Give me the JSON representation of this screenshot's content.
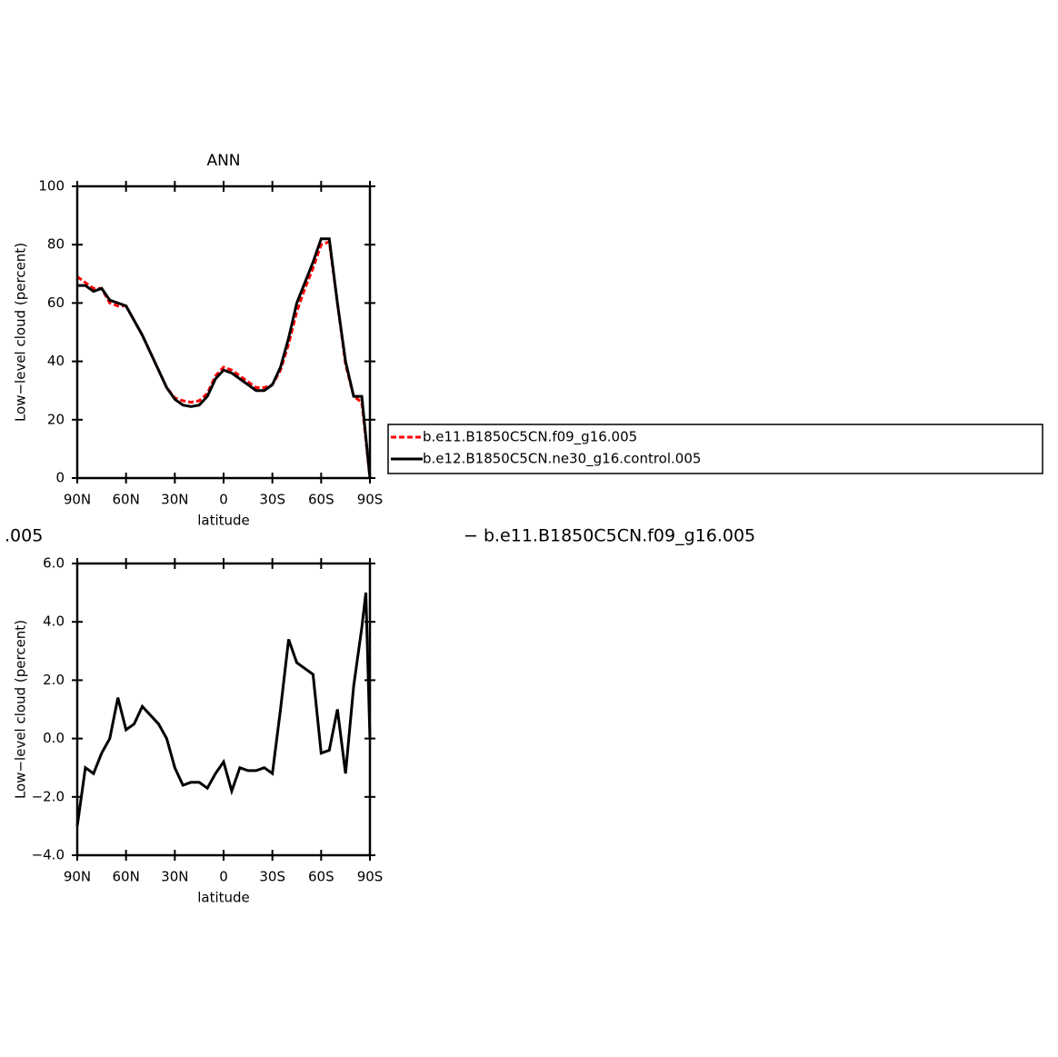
{
  "chart_data": [
    {
      "type": "line",
      "title": "ANN",
      "xlabel": "latitude",
      "ylabel": "Low−level cloud (percent)",
      "x": [
        90,
        85,
        80,
        75,
        70,
        65,
        60,
        55,
        50,
        45,
        40,
        35,
        30,
        25,
        20,
        15,
        10,
        5,
        0,
        -5,
        -10,
        -15,
        -20,
        -25,
        -30,
        -35,
        -40,
        -45,
        -50,
        -55,
        -60,
        -65,
        -70,
        -75,
        -80,
        -85,
        -90
      ],
      "series": [
        {
          "name": "b.e11.B1850C5CN.f09_g16.005",
          "color": "#ff0000",
          "dash": true,
          "values": [
            69,
            67,
            65,
            65,
            60,
            59,
            59,
            54,
            49,
            43,
            37,
            31,
            27.5,
            26.5,
            26,
            26.5,
            29,
            35,
            38,
            37,
            35,
            33,
            31,
            31,
            32,
            37,
            46,
            57,
            65,
            72,
            80,
            81,
            60,
            39,
            28,
            26,
            0
          ]
        },
        {
          "name": "b.e12.B1850C5CN.ne30_g16.control.005",
          "color": "#000000",
          "dash": false,
          "values": [
            66,
            66,
            64,
            65,
            61,
            60,
            59,
            54,
            49,
            43,
            37,
            31,
            27,
            25,
            24.5,
            25,
            28,
            34,
            37,
            36,
            34,
            32,
            30,
            30,
            32,
            38,
            48,
            60,
            67,
            74,
            82,
            82,
            60,
            40,
            28,
            28,
            0
          ]
        }
      ],
      "xlim": [
        90,
        -90
      ],
      "xticks": [
        {
          "value": 90,
          "label": "90N"
        },
        {
          "value": 60,
          "label": "60N"
        },
        {
          "value": 30,
          "label": "30N"
        },
        0,
        {
          "value": -30,
          "label": "30S"
        },
        {
          "value": -60,
          "label": "60S"
        },
        {
          "value": -90,
          "label": "90S"
        }
      ],
      "ylim": [
        0,
        100
      ],
      "yticks": [
        0,
        20,
        40,
        60,
        80,
        100
      ],
      "legend": "right"
    },
    {
      "type": "line",
      "xlabel": "latitude",
      "ylabel": "Low−level cloud (percent)",
      "annotations": [
        ".005",
        "−  b.e11.B1850C5CN.f09_g16.005"
      ],
      "x": [
        90,
        85,
        80,
        75,
        70,
        65,
        60,
        55,
        50,
        45,
        40,
        35,
        30,
        25,
        20,
        15,
        10,
        5,
        0,
        -5,
        -10,
        -15,
        -20,
        -25,
        -30,
        -35,
        -40,
        -45,
        -50,
        -55,
        -60,
        -65,
        -70,
        -75,
        -80,
        -85,
        -87.5,
        -90
      ],
      "series": [
        {
          "color": "#000000",
          "values": [
            -3,
            -1,
            -1.2,
            -0.5,
            0,
            1.4,
            0.3,
            0.5,
            1.1,
            0.8,
            0.5,
            0,
            -1,
            -1.6,
            -1.5,
            -1.5,
            -1.7,
            -1.2,
            -0.8,
            -1.8,
            -1,
            -1.1,
            -1.1,
            -1,
            -1.2,
            1,
            3.4,
            2.6,
            2.4,
            2.2,
            -0.5,
            -0.4,
            1,
            -1.2,
            1.8,
            3.8,
            5,
            0
          ]
        }
      ],
      "xlim": [
        90,
        -90
      ],
      "xticks": [
        {
          "value": 90,
          "label": "90N"
        },
        {
          "value": 60,
          "label": "60N"
        },
        {
          "value": 30,
          "label": "30N"
        },
        0,
        {
          "value": -30,
          "label": "30S"
        },
        {
          "value": -60,
          "label": "60S"
        },
        {
          "value": -90,
          "label": "90S"
        }
      ],
      "ylim": [
        -4,
        6
      ],
      "yticks": [
        {
          "value": -4,
          "label": "−4.0"
        },
        {
          "value": -2,
          "label": "−2.0"
        },
        {
          "value": 0,
          "label": "0.0"
        },
        {
          "value": 2,
          "label": "2.0"
        },
        {
          "value": 4,
          "label": "4.0"
        },
        {
          "value": 6,
          "label": "6.0"
        }
      ]
    }
  ]
}
